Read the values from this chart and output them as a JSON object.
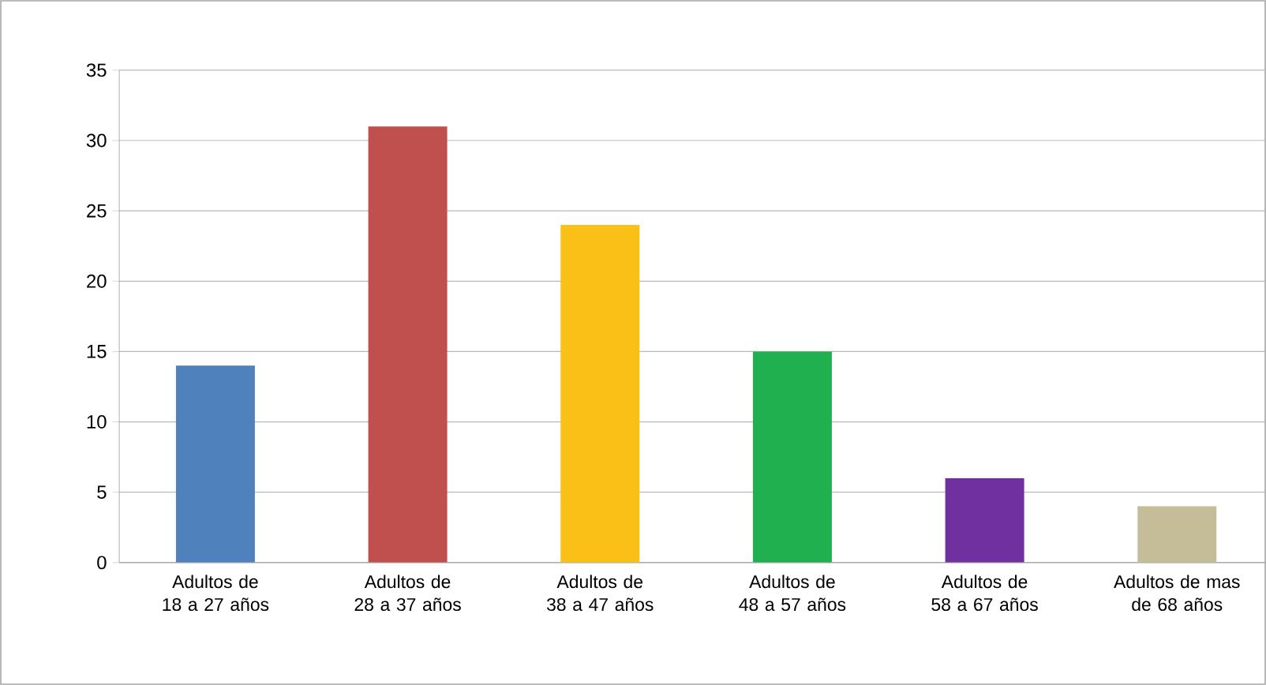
{
  "chart_data": {
    "type": "bar",
    "categories": [
      "Adultos de 18 a 27 años",
      "Adultos de 28 a 37 años",
      "Adultos de 38 a 47 años",
      "Adultos de 48 a 57 años",
      "Adultos de 58 a 67 años",
      "Adultos de mas de 68 años"
    ],
    "values": [
      14,
      31,
      24,
      15,
      6,
      4
    ],
    "colors": [
      "#4f81bd",
      "#c0504d",
      "#fbc015",
      "#21b04f",
      "#7030a0",
      "#c4bd97"
    ],
    "ylim": [
      0,
      35
    ],
    "yticks": [
      0,
      5,
      10,
      15,
      20,
      25,
      30,
      35
    ],
    "grid": "y"
  }
}
